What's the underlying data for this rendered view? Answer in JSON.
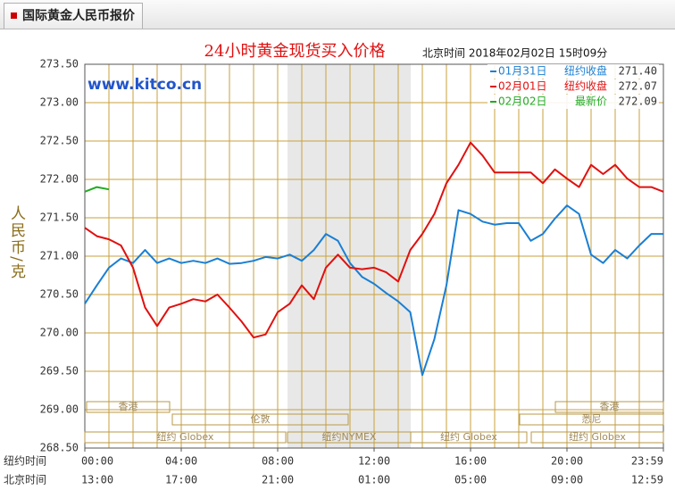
{
  "header": {
    "title": "国际黄金人民币报价"
  },
  "chart_data": {
    "type": "line",
    "title": "24小时黄金现货买入价格",
    "timestamp": "北京时间  2018年02月02日 15时09分",
    "watermark": "www.kitco.cn",
    "y_label": "人民币/克",
    "x_label": "纽约时间",
    "x_secondary_label": "北京时间",
    "xlim": [
      0,
      24
    ],
    "xticks": [
      {
        "value": 0,
        "label": "00:00"
      },
      {
        "value": 4,
        "label": "04:00"
      },
      {
        "value": 8,
        "label": "08:00"
      },
      {
        "value": 12,
        "label": "12:00"
      },
      {
        "value": 16,
        "label": "16:00"
      },
      {
        "value": 20,
        "label": "20:00"
      },
      {
        "value": 24,
        "label": "23:59"
      }
    ],
    "x_secondary_ticks": [
      "13:00",
      "17:00",
      "21:00",
      "01:00",
      "05:00",
      "09:00",
      "12:59"
    ],
    "ylim": [
      268.5,
      273.5
    ],
    "yticks": [
      {
        "value": 268.5,
        "label": "268.50"
      },
      {
        "value": 269,
        "label": "269.00"
      },
      {
        "value": 269.5,
        "label": "269.50"
      },
      {
        "value": 270,
        "label": "270.00"
      },
      {
        "value": 270.5,
        "label": "270.50"
      },
      {
        "value": 271,
        "label": "271.00"
      },
      {
        "value": 271.5,
        "label": "271.50"
      },
      {
        "value": 272,
        "label": "272.00"
      },
      {
        "value": 272.5,
        "label": "272.50"
      },
      {
        "value": 273,
        "label": "273.00"
      },
      {
        "value": 273.5,
        "label": "273.50"
      }
    ],
    "grid": true,
    "x": [
      0,
      0.5,
      1,
      1.5,
      2,
      2.5,
      3,
      3.5,
      4,
      4.5,
      5,
      5.5,
      6,
      6.5,
      7,
      7.5,
      8,
      8.5,
      9,
      9.5,
      10,
      10.5,
      11,
      11.5,
      12,
      12.5,
      13,
      13.5,
      14,
      14.5,
      15,
      15.5,
      16,
      16.5,
      17,
      17.5,
      18,
      18.5,
      19,
      19.5,
      20,
      20.5,
      21,
      21.5,
      22,
      22.5,
      23,
      23.5,
      24
    ],
    "series": [
      {
        "name": "01月31日",
        "note": "纽约收盘",
        "close": 271.4,
        "close_label": "271.40",
        "color": "#1a7fd4",
        "values": [
          270.38,
          270.62,
          270.85,
          270.97,
          270.91,
          271.08,
          270.91,
          270.97,
          270.91,
          270.94,
          270.91,
          270.97,
          270.9,
          270.91,
          270.94,
          270.99,
          270.97,
          271.02,
          270.94,
          271.08,
          271.29,
          271.2,
          270.91,
          270.73,
          270.64,
          270.52,
          270.41,
          270.27,
          269.45,
          269.92,
          270.62,
          271.6,
          271.55,
          271.45,
          271.41,
          271.43,
          271.43,
          271.2,
          271.29,
          271.49,
          271.66,
          271.55,
          271.02,
          270.91,
          271.08,
          270.97,
          271.14,
          271.29,
          271.29
        ]
      },
      {
        "name": "02月01日",
        "note": "纽约收盘",
        "close": 272.07,
        "close_label": "272.07",
        "color": "#e01010",
        "values": [
          271.37,
          271.26,
          271.22,
          271.14,
          270.85,
          270.33,
          270.09,
          270.33,
          270.38,
          270.44,
          270.41,
          270.5,
          270.33,
          270.15,
          269.94,
          269.98,
          270.27,
          270.38,
          270.62,
          270.44,
          270.85,
          271.02,
          270.85,
          270.83,
          270.85,
          270.79,
          270.67,
          271.08,
          271.29,
          271.55,
          271.95,
          272.19,
          272.48,
          272.31,
          272.09,
          272.09,
          272.09,
          272.09,
          271.95,
          272.13,
          272.01,
          271.9,
          272.19,
          272.07,
          272.19,
          272.01,
          271.9,
          271.9,
          271.84
        ]
      },
      {
        "name": "02月02日",
        "note": "最新价",
        "close": 272.09,
        "close_label": "272.09",
        "color": "#22aa22",
        "values": [
          271.84,
          271.9,
          271.87,
          null,
          null,
          null,
          null,
          null,
          null,
          null,
          null,
          null,
          null,
          null,
          null,
          null,
          null,
          null,
          null,
          null,
          null,
          null,
          null,
          null,
          null,
          null,
          null,
          null,
          null,
          null,
          null,
          null,
          null,
          null,
          null,
          null,
          null,
          null,
          null,
          null,
          null,
          null,
          null,
          null,
          null,
          null,
          null,
          null,
          null
        ]
      }
    ],
    "sessions": [
      "香港",
      "伦敦",
      "纽约 Globex",
      "纽约NYMEX",
      "纽约 Globex",
      "悉尼",
      "香港",
      "纽约 Globex"
    ]
  }
}
